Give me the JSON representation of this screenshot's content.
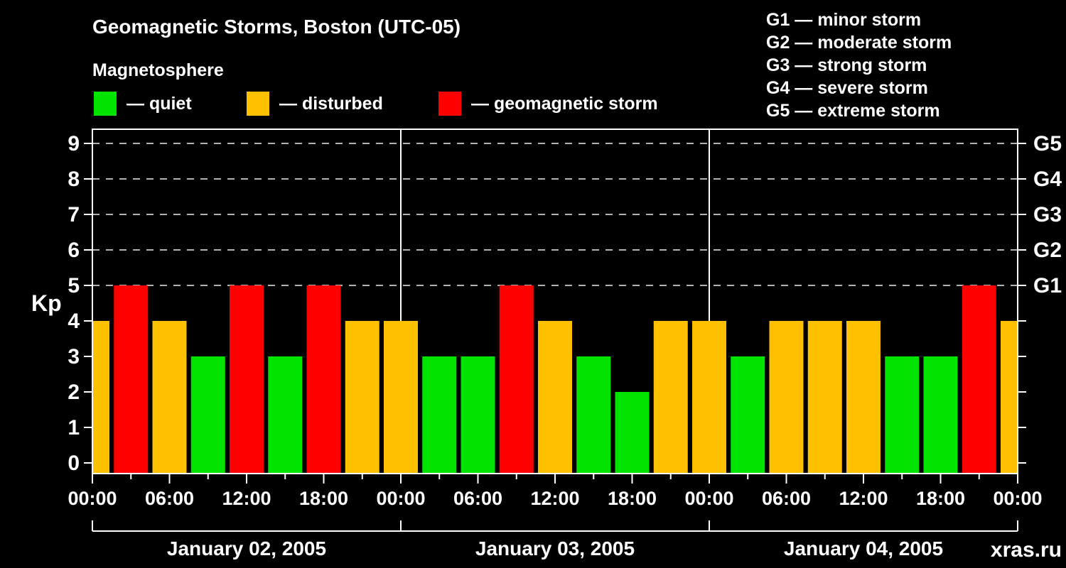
{
  "header": {
    "title": "Geomagnetic Storms, Boston (UTC-05)",
    "subtitle": "Magnetosphere",
    "legend": [
      {
        "label": "— quiet",
        "color": "#00e400"
      },
      {
        "label": "— disturbed",
        "color": "#ffc000"
      },
      {
        "label": "— geomagnetic storm",
        "color": "#ff0000"
      }
    ],
    "g_scale_legend": [
      "G1 — minor storm",
      "G2 — moderate storm",
      "G3 — strong storm",
      "G4 — severe storm",
      "G5 — extreme storm"
    ]
  },
  "watermark": "xras.ru",
  "chart_data": {
    "type": "bar",
    "title": "Geomagnetic Storms, Boston (UTC-05)",
    "subtitle": "Magnetosphere",
    "ylabel": "Kp",
    "ylim": [
      0,
      9
    ],
    "grid": "dashed horizontal lines at Kp 5-9 (G1-G5 levels)",
    "y_ticks": [
      0,
      1,
      2,
      3,
      4,
      5,
      6,
      7,
      8,
      9
    ],
    "grid_levels": [
      5,
      6,
      7,
      8,
      9
    ],
    "right_axis_labels": [
      {
        "kp": 5,
        "label": "G1"
      },
      {
        "kp": 6,
        "label": "G2"
      },
      {
        "kp": 7,
        "label": "G3"
      },
      {
        "kp": 8,
        "label": "G4"
      },
      {
        "kp": 9,
        "label": "G5"
      }
    ],
    "x_tick_labels_cycle": [
      "00:00",
      "06:00",
      "12:00",
      "18:00"
    ],
    "hours_per_point": 3,
    "days": [
      "January 02, 2005",
      "January 03, 2005",
      "January 04, 2005"
    ],
    "kp_values": [
      4,
      5,
      4,
      3,
      5,
      3,
      5,
      4,
      4,
      3,
      3,
      5,
      4,
      3,
      2,
      4,
      4,
      3,
      4,
      4,
      4,
      3,
      3,
      5,
      4
    ],
    "color_rules": {
      "quiet_max_kp": 3,
      "disturbed_max_kp": 4,
      "quiet": "#00e400",
      "disturbed": "#ffc000",
      "storm": "#ff0000"
    },
    "axis_color": "#ffffff",
    "gridline_color": "#b3b3b3",
    "watermark_color": "#8c8c8c"
  }
}
